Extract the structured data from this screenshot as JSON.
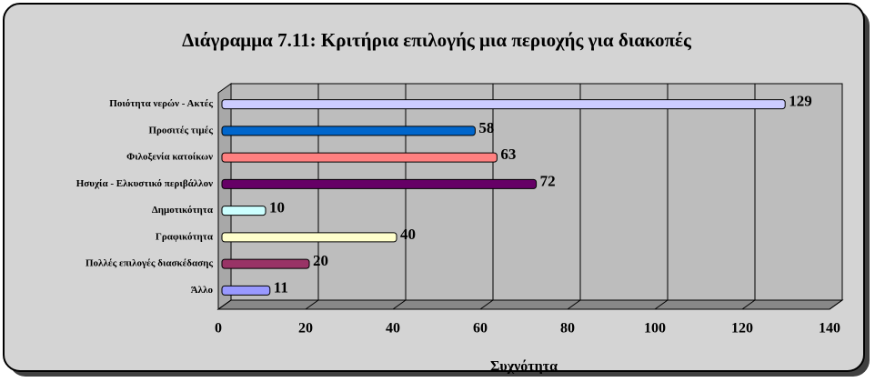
{
  "chart_data": {
    "type": "bar",
    "orientation": "horizontal",
    "title": "Διάγραμμα 7.11: Κριτήρια επιλογής μια περιοχής για διακοπές",
    "x_label": "Συχνότητα",
    "categories": [
      "Ποιότητα νερών - Ακτές",
      "Προσιτές τιμές",
      "Φιλοξενία κατοίκων",
      "Ησυχία - Ελκυστικό περιβάλλον",
      "Δημοτικότητα",
      "Γραφικότητα",
      "Πολλές επιλογές διασκέδασης",
      "Άλλο"
    ],
    "values": [
      129,
      58,
      63,
      72,
      10,
      40,
      20,
      11
    ],
    "colors": [
      "#ccccff",
      "#0066cc",
      "#ff8080",
      "#660066",
      "#ccffff",
      "#ffffcc",
      "#993366",
      "#9999ff"
    ],
    "xlim": [
      0,
      140
    ],
    "xticks": [
      0,
      20,
      40,
      60,
      80,
      100,
      120,
      140
    ],
    "grid": true
  }
}
